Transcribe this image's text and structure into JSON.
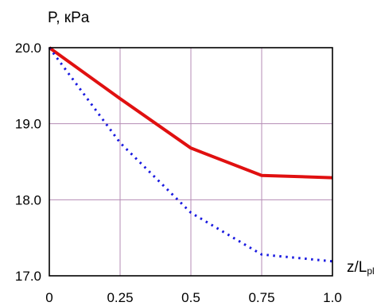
{
  "chart_data": {
    "type": "line",
    "ylabel": "P, кPa",
    "xlabel_main": "z/L",
    "xlabel_sub": "pl",
    "x_ticks": [
      "0",
      "0.25",
      "0.5",
      "0.75",
      "1.0"
    ],
    "y_ticks": [
      "17.0",
      "18.0",
      "19.0",
      "20.0"
    ],
    "xlim": [
      0,
      1.0
    ],
    "ylim": [
      17.0,
      20.0
    ],
    "grid": true,
    "colors": {
      "grid": "#b58bb5",
      "axis": "#000000"
    },
    "series": [
      {
        "color": "#e01010",
        "style": "solid",
        "x": [
          0,
          0.25,
          0.5,
          0.75,
          1.0
        ],
        "y": [
          20.0,
          19.33,
          18.68,
          18.32,
          18.29
        ]
      },
      {
        "color": "#1a1ae0",
        "style": "dotted",
        "x": [
          0,
          0.25,
          0.5,
          0.75,
          1.0
        ],
        "y": [
          20.0,
          18.75,
          17.83,
          17.28,
          17.19
        ]
      }
    ]
  }
}
